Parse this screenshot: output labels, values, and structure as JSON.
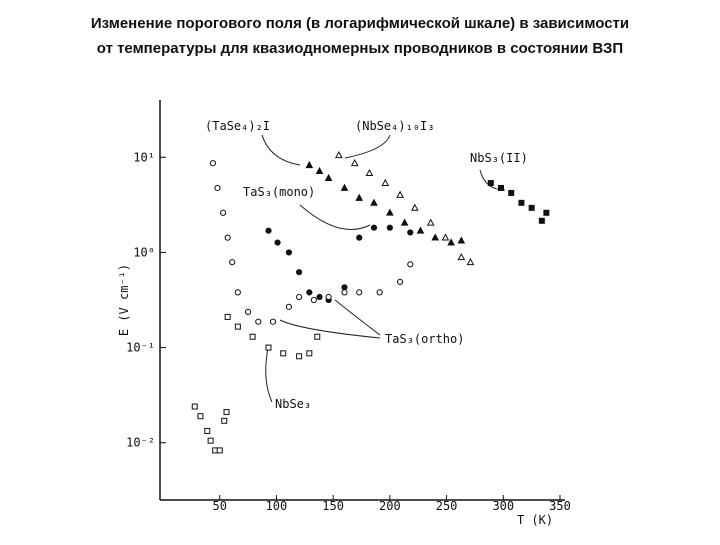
{
  "chart_data": {
    "type": "scatter",
    "title": "Изменение порогового поля (в логарифмической шкале) в зависимости",
    "subtitle": "от температуры для квазиодномерных проводников в состоянии ВЗП",
    "xlabel": "T (K)",
    "ylabel": "E (V cm⁻¹)",
    "xlim": [
      0,
      350
    ],
    "xticks": [
      50,
      100,
      150,
      200,
      250,
      300,
      350
    ],
    "ylim": [
      0.0025,
      40
    ],
    "log_y": true,
    "yticks": [
      {
        "value": 10,
        "label": "10¹"
      },
      {
        "value": 1,
        "label": "10⁰"
      },
      {
        "value": 0.1,
        "label": "10⁻¹"
      },
      {
        "value": 0.01,
        "label": "10⁻²"
      }
    ],
    "series": [
      {
        "name": "(TaSe₄)₂I",
        "color": "#111111",
        "marker": "filled-triangle",
        "x": [
          129,
          138,
          146,
          160,
          173,
          186,
          200,
          213,
          227,
          240,
          254,
          263
        ],
        "values": [
          8.26,
          7.15,
          6.04,
          4.76,
          3.74,
          3.32,
          2.61,
          2.05,
          1.69,
          1.43,
          1.27,
          1.33
        ]
      },
      {
        "name": "(NbSe₄)₁₀I₃",
        "color": "#111111",
        "marker": "open-triangle",
        "x": [
          155,
          169,
          182,
          196,
          209,
          222,
          236,
          249,
          263,
          271
        ],
        "values": [
          10.5,
          8.66,
          6.81,
          5.36,
          4.02,
          2.94,
          2.05,
          1.43,
          0.89,
          0.79
        ]
      },
      {
        "name": "NbS₃(II)",
        "color": "#111111",
        "marker": "filled-square",
        "x": [
          289,
          298,
          307,
          316,
          325,
          334,
          338
        ],
        "values": [
          5.36,
          4.76,
          4.22,
          3.32,
          2.94,
          2.15,
          2.61
        ]
      },
      {
        "name": "TaS₃(mono)",
        "color": "#111111",
        "marker": "filled-circle",
        "x": [
          93,
          101,
          111,
          120,
          129,
          138,
          146,
          160,
          173,
          186,
          200,
          218
        ],
        "values": [
          1.69,
          1.27,
          1.0,
          0.62,
          0.38,
          0.34,
          0.316,
          0.43,
          1.43,
          1.82,
          1.82,
          1.62
        ]
      },
      {
        "name": "TaS₃(ortho)",
        "color": "#111111",
        "marker": "open-circle",
        "x": [
          44,
          48,
          53,
          57,
          61,
          66,
          75,
          84,
          97,
          111,
          120,
          133,
          146,
          160,
          173,
          191,
          209,
          218
        ],
        "values": [
          8.66,
          4.76,
          2.61,
          1.43,
          0.79,
          0.38,
          0.237,
          0.187,
          0.187,
          0.268,
          0.34,
          0.316,
          0.34,
          0.38,
          0.38,
          0.38,
          0.49,
          0.75
        ]
      },
      {
        "name": "TaS₃(ortho)",
        "color": "#111111",
        "marker": "open-square",
        "x": [
          57,
          66,
          79,
          93,
          106,
          120,
          129,
          136
        ],
        "values": [
          0.21,
          0.166,
          0.13,
          0.1,
          0.087,
          0.081,
          0.087,
          0.13
        ]
      },
      {
        "name": "NbSe₃",
        "color": "#111111",
        "marker": "open-square",
        "x": [
          28,
          33,
          39,
          42,
          46,
          50,
          54,
          56
        ],
        "values": [
          0.024,
          0.019,
          0.0133,
          0.0105,
          0.0083,
          0.0083,
          0.017,
          0.021
        ]
      }
    ]
  }
}
